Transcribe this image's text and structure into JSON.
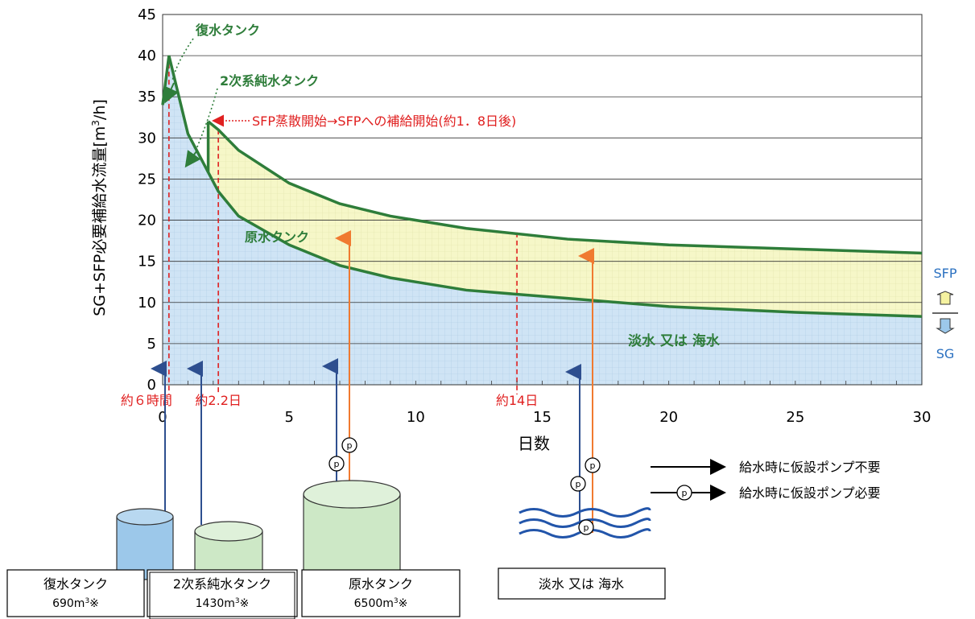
{
  "chart_data": {
    "type": "area",
    "x_unit_label": "日数",
    "ylabel": "SG+SFP必要補給水流量[m",
    "ylabel_sup": "3",
    "ylabel_tail": "/h]",
    "xlim": [
      0,
      30
    ],
    "ylim": [
      0,
      45
    ],
    "x_ticks": [
      0,
      5,
      10,
      15,
      20,
      25,
      30
    ],
    "y_ticks": [
      0,
      5,
      10,
      15,
      20,
      25,
      30,
      35,
      40,
      45
    ],
    "grid": "horizontal-major",
    "series": [
      {
        "name": "SG",
        "x": [
          0,
          0.25,
          1.0,
          2.2,
          3,
          5,
          7,
          9,
          12,
          16,
          20,
          25,
          30
        ],
        "y": [
          34,
          40,
          30.5,
          23.5,
          20.5,
          17,
          14.5,
          13,
          11.5,
          10.5,
          9.5,
          8.8,
          8.3
        ]
      },
      {
        "name": "SG+SFP",
        "x": [
          1.8,
          2.2,
          3,
          5,
          7,
          9,
          12,
          16,
          20,
          25,
          30
        ],
        "y": [
          32,
          31,
          28.5,
          24.5,
          22,
          20.5,
          19,
          17.7,
          17,
          16.5,
          16
        ]
      }
    ],
    "band_labels": {
      "sfp": "SFP",
      "sg": "SG"
    },
    "vertical_markers": [
      {
        "x": 0.25,
        "label": "約６時間"
      },
      {
        "x": 2.2,
        "label": "約2.2日"
      },
      {
        "x": 14,
        "label": "約14日"
      }
    ],
    "sfp_step_x": 1.8,
    "annotations": {
      "condensate": "復水タンク",
      "secondary": "2次系純水タンク",
      "sfp_start": "SFP蒸散開始→SFPへの補給開始(約1．8日後)",
      "raw": "原水タンク",
      "fresh": "淡水 又は 海水"
    }
  },
  "legend": {
    "no_pump": "給水時に仮設ポンプ不要",
    "pump": "給水時に仮設ポンプ必要",
    "pump_symbol": "p"
  },
  "sources": {
    "condensate": {
      "name": "復水タンク",
      "capacity": "690m",
      "sup": "3",
      "note": "※"
    },
    "secondary": {
      "name": "2次系純水タンク",
      "capacity": "1430m",
      "sup": "3",
      "note": "※"
    },
    "raw": {
      "name": "原水タンク",
      "capacity": "6500m",
      "sup": "3",
      "note": "※"
    },
    "fresh": {
      "name": "淡水 又は 海水"
    }
  },
  "colors": {
    "sg_fill": "#cfe4f5",
    "sfp_fill": "#f6f7c8",
    "curve": "#2e7d3a",
    "marker": "#e02020",
    "arrow_blue": "#2e4f8f",
    "arrow_orange": "#f07a30",
    "tank_blue": "#9cc8ea",
    "tank_green": "#cde8c6",
    "water": "#2255aa"
  }
}
